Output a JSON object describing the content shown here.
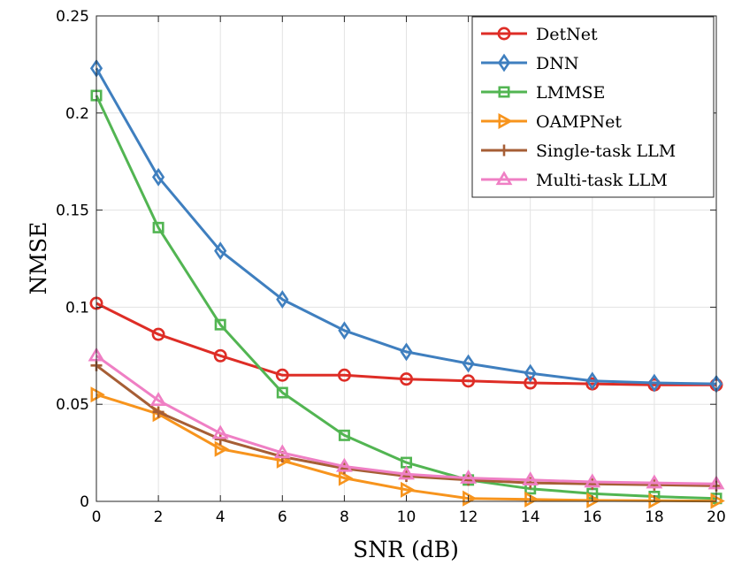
{
  "chart_data": {
    "type": "line",
    "title": "",
    "xlabel": "SNR (dB)",
    "ylabel": "NMSE",
    "x": [
      0,
      2,
      4,
      6,
      8,
      10,
      12,
      14,
      16,
      18,
      20
    ],
    "xlim": [
      0,
      20
    ],
    "ylim": [
      0,
      0.25
    ],
    "xticks": [
      0,
      2,
      4,
      6,
      8,
      10,
      12,
      14,
      16,
      18,
      20
    ],
    "xtick_labels": [
      "0",
      "2",
      "4",
      "6",
      "8",
      "10",
      "12",
      "14",
      "16",
      "18",
      "20"
    ],
    "yticks": [
      0,
      0.05,
      0.1,
      0.15,
      0.2,
      0.25
    ],
    "ytick_labels": [
      "0",
      "0.05",
      "0.1",
      "0.15",
      "0.2",
      "0.25"
    ],
    "grid": true,
    "legend_position": "top-right",
    "series": [
      {
        "name": "DetNet",
        "color": "#de2d26",
        "marker": "circle",
        "values": [
          0.102,
          0.086,
          0.075,
          0.065,
          0.065,
          0.063,
          0.062,
          0.061,
          0.0605,
          0.06,
          0.06
        ]
      },
      {
        "name": "DNN",
        "color": "#3f7fbf",
        "marker": "diamond",
        "values": [
          0.223,
          0.167,
          0.129,
          0.104,
          0.088,
          0.077,
          0.071,
          0.066,
          0.062,
          0.061,
          0.0605
        ]
      },
      {
        "name": "LMMSE",
        "color": "#52b552",
        "marker": "square",
        "values": [
          0.209,
          0.141,
          0.091,
          0.056,
          0.034,
          0.02,
          0.011,
          0.0065,
          0.004,
          0.0025,
          0.0015
        ]
      },
      {
        "name": "OAMPNet",
        "color": "#f7941d",
        "marker": "triangle-right",
        "values": [
          0.055,
          0.045,
          0.027,
          0.021,
          0.012,
          0.006,
          0.0015,
          0.001,
          0.0005,
          0.0003,
          0.0002
        ]
      },
      {
        "name": "Single-task LLM",
        "color": "#a65e35",
        "marker": "plus",
        "values": [
          0.07,
          0.046,
          0.032,
          0.023,
          0.017,
          0.013,
          0.011,
          0.0095,
          0.009,
          0.0085,
          0.008
        ]
      },
      {
        "name": "Multi-task LLM",
        "color": "#ef7fc4",
        "marker": "triangle-up",
        "values": [
          0.075,
          0.052,
          0.035,
          0.025,
          0.018,
          0.014,
          0.012,
          0.011,
          0.01,
          0.0095,
          0.009
        ]
      }
    ]
  }
}
